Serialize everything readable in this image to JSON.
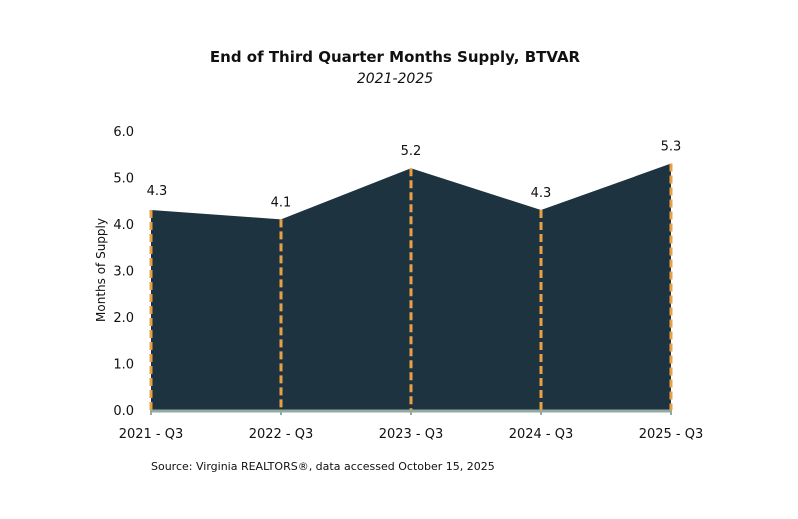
{
  "chart_data": {
    "type": "area",
    "title": "End of Third Quarter Months Supply, BTVAR",
    "subtitle": "2021-2025",
    "xlabel": "",
    "ylabel": "Months of Supply",
    "categories": [
      "2021 - Q3",
      "2022 - Q3",
      "2023 - Q3",
      "2024 - Q3",
      "2025 - Q3"
    ],
    "values": [
      4.3,
      4.1,
      5.2,
      4.3,
      5.3
    ],
    "data_labels": [
      "4.3",
      "4.1",
      "5.2",
      "4.3",
      "5.3"
    ],
    "ylim": [
      0,
      6
    ],
    "yticks": [
      0,
      1,
      2,
      3,
      4,
      5,
      6
    ],
    "ytick_labels": [
      "0.0",
      "1.0",
      "2.0",
      "3.0",
      "4.0",
      "5.0",
      "6.0"
    ],
    "grid": false,
    "legend": "none",
    "drop_lines": "dashed",
    "colors": {
      "area": "#1d3340",
      "drop_line": "#e9a045",
      "baseline": "#93aaa0"
    },
    "source": "Source: Virginia REALTORS®, data accessed October 15, 2025"
  }
}
